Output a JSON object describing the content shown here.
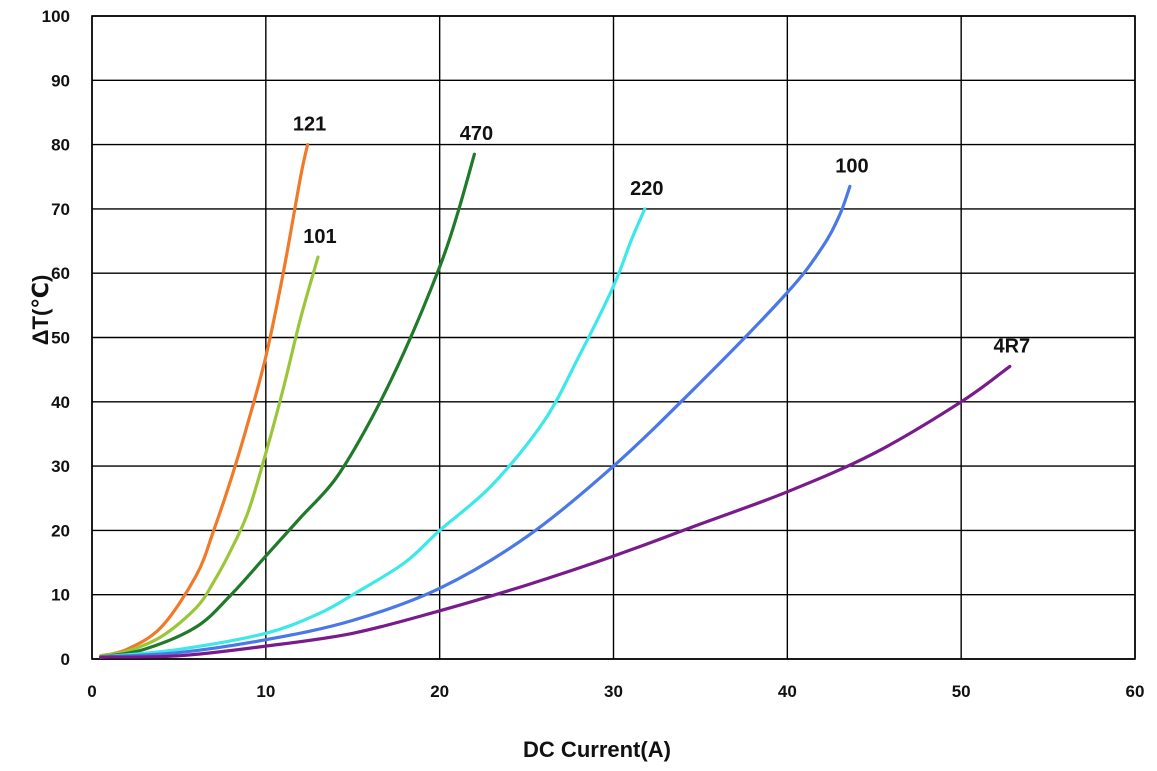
{
  "chart_data": {
    "type": "line",
    "title": "",
    "xlabel": "DC Current(A)",
    "ylabel": "ΔT(℃)",
    "xlim": [
      0,
      60
    ],
    "ylim": [
      0,
      100
    ],
    "xticks": [
      0,
      10,
      20,
      30,
      40,
      50,
      60
    ],
    "yticks": [
      0,
      10,
      20,
      30,
      40,
      50,
      60,
      70,
      80,
      90,
      100
    ],
    "grid": true,
    "legend": "none",
    "series": [
      {
        "name": "121",
        "color": "#f07a28",
        "points": [
          [
            0.5,
            0.5
          ],
          [
            2,
            1.5
          ],
          [
            4,
            5
          ],
          [
            6,
            13
          ],
          [
            7,
            20
          ],
          [
            8,
            28
          ],
          [
            9,
            37
          ],
          [
            10,
            47
          ],
          [
            11,
            60
          ],
          [
            12,
            75
          ],
          [
            12.4,
            80
          ]
        ]
      },
      {
        "name": "101",
        "color": "#9bc63a",
        "points": [
          [
            0.5,
            0.5
          ],
          [
            2,
            1.2
          ],
          [
            4,
            3.5
          ],
          [
            6,
            8
          ],
          [
            7,
            12
          ],
          [
            8,
            17
          ],
          [
            9,
            23
          ],
          [
            10,
            32
          ],
          [
            11,
            42
          ],
          [
            12,
            53
          ],
          [
            13,
            62.5
          ]
        ]
      },
      {
        "name": "470",
        "color": "#1f7a2a",
        "points": [
          [
            0.5,
            0.3
          ],
          [
            3,
            1.5
          ],
          [
            6,
            5
          ],
          [
            8,
            10
          ],
          [
            10,
            16
          ],
          [
            12,
            22
          ],
          [
            14,
            28
          ],
          [
            16,
            37
          ],
          [
            18,
            48
          ],
          [
            20,
            61
          ],
          [
            21,
            69
          ],
          [
            22,
            78.5
          ]
        ]
      },
      {
        "name": "220",
        "color": "#3de8e8",
        "points": [
          [
            0.5,
            0.3
          ],
          [
            5,
            1.5
          ],
          [
            10,
            4
          ],
          [
            13,
            7
          ],
          [
            15,
            10
          ],
          [
            18,
            15
          ],
          [
            20,
            20
          ],
          [
            23,
            27
          ],
          [
            26,
            37
          ],
          [
            28,
            47
          ],
          [
            30,
            58
          ],
          [
            31,
            65
          ],
          [
            31.8,
            70
          ]
        ]
      },
      {
        "name": "100",
        "color": "#4a78e6",
        "points": [
          [
            0.5,
            0.3
          ],
          [
            5,
            1
          ],
          [
            10,
            3
          ],
          [
            15,
            6
          ],
          [
            20,
            11
          ],
          [
            25,
            19
          ],
          [
            30,
            30
          ],
          [
            35,
            43
          ],
          [
            40,
            57
          ],
          [
            42,
            64
          ],
          [
            43,
            69
          ],
          [
            43.6,
            73.5
          ]
        ]
      },
      {
        "name": "4R7",
        "color": "#7a1b8c",
        "points": [
          [
            0.5,
            0.3
          ],
          [
            5,
            0.5
          ],
          [
            10,
            2
          ],
          [
            15,
            4
          ],
          [
            20,
            7.5
          ],
          [
            25,
            11.5
          ],
          [
            30,
            16
          ],
          [
            35,
            21
          ],
          [
            40,
            26
          ],
          [
            45,
            32
          ],
          [
            50,
            40
          ],
          [
            52.8,
            45.5
          ]
        ]
      }
    ]
  }
}
